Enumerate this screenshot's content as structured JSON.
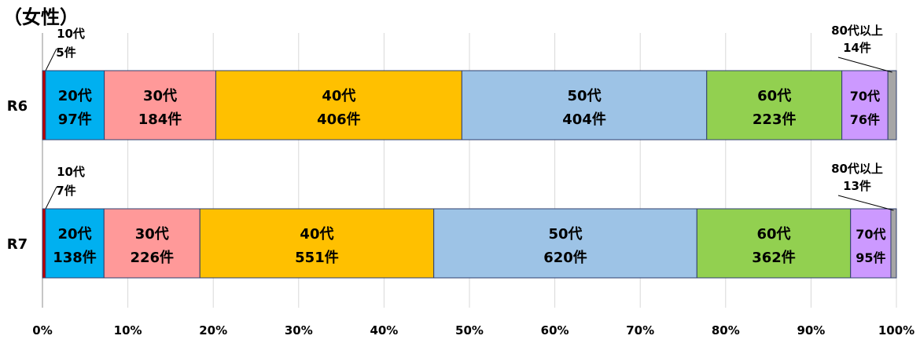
{
  "chart_data": {
    "type": "stacked-bar-100",
    "title": "（女性）",
    "xlim": [
      0,
      100
    ],
    "x_ticks": [
      "0%",
      "10%",
      "20%",
      "30%",
      "40%",
      "50%",
      "60%",
      "70%",
      "80%",
      "90%",
      "100%"
    ],
    "grid": true,
    "orientation": "horizontal",
    "categories": [
      "R6",
      "R7"
    ],
    "series": [
      {
        "age": "10代",
        "color": "#C00000",
        "counts": [
          5,
          7
        ],
        "labels": [
          "10代 5件",
          "10代 7件"
        ]
      },
      {
        "age": "20代",
        "color": "#00B0F0",
        "counts": [
          97,
          138
        ],
        "labels": [
          "20代 97件",
          "20代 138件"
        ]
      },
      {
        "age": "30代",
        "color": "#FF9999",
        "counts": [
          184,
          226
        ],
        "labels": [
          "30代 184件",
          "30代 226件"
        ]
      },
      {
        "age": "40代",
        "color": "#FFC000",
        "counts": [
          406,
          551
        ],
        "labels": [
          "40代 406件",
          "40代 551件"
        ]
      },
      {
        "age": "50代",
        "color": "#9DC3E6",
        "counts": [
          404,
          620
        ],
        "labels": [
          "50代 404件",
          "50代 620件"
        ]
      },
      {
        "age": "60代",
        "color": "#92D050",
        "counts": [
          223,
          362
        ],
        "labels": [
          "60代 223件",
          "60代 362件"
        ]
      },
      {
        "age": "70代",
        "color": "#CC99FF",
        "counts": [
          76,
          95
        ],
        "labels": [
          "70代 76件",
          "70代 95件"
        ]
      },
      {
        "age": "80代以上",
        "color": "#A6A6A6",
        "counts": [
          14,
          13
        ],
        "labels": [
          "80代以上 14件",
          "80代以上 13件"
        ]
      }
    ]
  }
}
